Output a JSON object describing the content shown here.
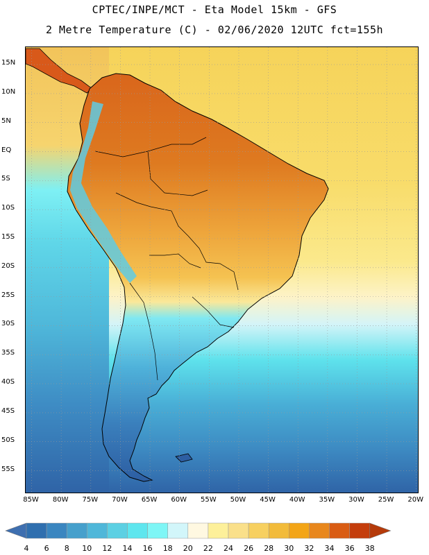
{
  "title": {
    "line1": "CPTEC/INPE/MCT -  Eta Model 15km - GFS",
    "line2": "2 Metre Temperature (C) - 02/06/2020 12UTC fct=155h"
  },
  "map": {
    "lon_range": [
      -86,
      -19.5
    ],
    "lat_range": [
      -59,
      18
    ],
    "lat_ticks": [
      {
        "value": 15,
        "label": "15N"
      },
      {
        "value": 10,
        "label": "10N"
      },
      {
        "value": 5,
        "label": "5N"
      },
      {
        "value": 0,
        "label": "EQ"
      },
      {
        "value": -5,
        "label": "5S"
      },
      {
        "value": -10,
        "label": "10S"
      },
      {
        "value": -15,
        "label": "15S"
      },
      {
        "value": -20,
        "label": "20S"
      },
      {
        "value": -25,
        "label": "25S"
      },
      {
        "value": -30,
        "label": "30S"
      },
      {
        "value": -35,
        "label": "35S"
      },
      {
        "value": -40,
        "label": "40S"
      },
      {
        "value": -45,
        "label": "45S"
      },
      {
        "value": -50,
        "label": "50S"
      },
      {
        "value": -55,
        "label": "55S"
      }
    ],
    "lon_ticks": [
      {
        "value": -85,
        "label": "85W"
      },
      {
        "value": -80,
        "label": "80W"
      },
      {
        "value": -75,
        "label": "75W"
      },
      {
        "value": -70,
        "label": "70W"
      },
      {
        "value": -65,
        "label": "65W"
      },
      {
        "value": -60,
        "label": "60W"
      },
      {
        "value": -55,
        "label": "55W"
      },
      {
        "value": -50,
        "label": "50W"
      },
      {
        "value": -45,
        "label": "45W"
      },
      {
        "value": -40,
        "label": "40W"
      },
      {
        "value": -35,
        "label": "35W"
      },
      {
        "value": -30,
        "label": "30W"
      },
      {
        "value": -25,
        "label": "25W"
      },
      {
        "value": -20,
        "label": "20W"
      }
    ]
  },
  "colorbar": {
    "levels": [
      "4",
      "6",
      "8",
      "10",
      "12",
      "14",
      "16",
      "18",
      "20",
      "22",
      "24",
      "26",
      "28",
      "30",
      "32",
      "34",
      "36",
      "38"
    ],
    "colors": [
      "#3e6fb0",
      "#2f6faf",
      "#3a86c0",
      "#46a0cc",
      "#4fb7d9",
      "#5cd0e3",
      "#5ee6ee",
      "#7ef6f6",
      "#d2f6fa",
      "#fff8e1",
      "#fdf09a",
      "#fae08a",
      "#f7d060",
      "#f2bb3a",
      "#f3a517",
      "#e8871c",
      "#d95c13",
      "#c43d0c",
      "#b53a0a"
    ]
  }
}
